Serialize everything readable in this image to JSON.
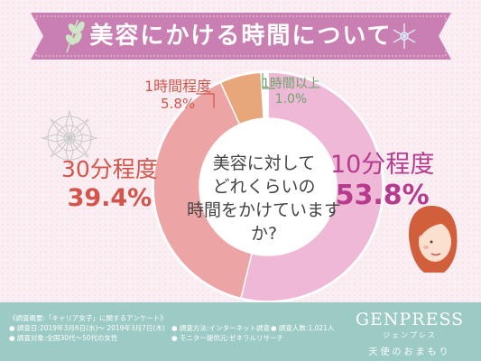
{
  "title": "美容にかける時間について",
  "center_question": [
    "美容に対して",
    "どれくらいの",
    "時間をかけていますか?"
  ],
  "chart_data": {
    "type": "pie",
    "categories": [
      "10分程度",
      "30分程度",
      "1時間程度",
      "1時間以上"
    ],
    "values": [
      53.8,
      39.4,
      5.8,
      1.0
    ],
    "value_labels": [
      "53.8%",
      "39.4%",
      "5.8%",
      "1.0%"
    ],
    "colors": [
      "#eeb8d6",
      "#eda4a4",
      "#e8a77a",
      "#ffffff"
    ],
    "label_colors": [
      "#b63b8e",
      "#d4544a",
      "#d4544a",
      "#6aa56a"
    ],
    "donut": true
  },
  "footer": {
    "survey_title": "《調査概要:「キャリア女子」に関するアンケート》",
    "period": "● 調査日:2019年3月6日(水)〜 2019年3月7日(木)",
    "target": "● 調査対象:全国30代〜50代の女性",
    "method": "● 調査方法:インターネット調査",
    "count": "● 調査人数:1,021人",
    "provider": "● モニター提供元:ゼネラルリサーチ"
  },
  "brand": {
    "name": "GENPRESS",
    "kana": "ジェンプレス",
    "tagline": "天使のおまもり"
  }
}
